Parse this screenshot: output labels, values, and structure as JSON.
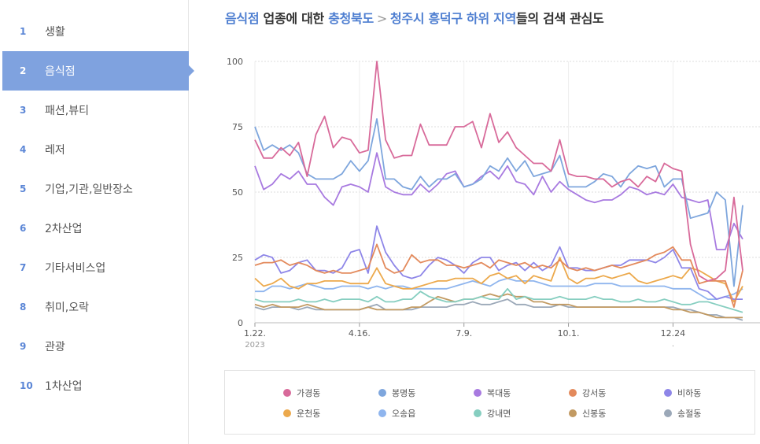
{
  "sidebar": {
    "items": [
      {
        "num": "1",
        "label": "생활"
      },
      {
        "num": "2",
        "label": "음식점",
        "active": true
      },
      {
        "num": "3",
        "label": "패션,뷰티"
      },
      {
        "num": "4",
        "label": "레저"
      },
      {
        "num": "5",
        "label": "기업,기관,일반장소"
      },
      {
        "num": "6",
        "label": "2차산업"
      },
      {
        "num": "7",
        "label": "기타서비스업"
      },
      {
        "num": "8",
        "label": "취미,오락"
      },
      {
        "num": "9",
        "label": "관광"
      },
      {
        "num": "10",
        "label": "1차산업"
      }
    ]
  },
  "title": {
    "category": "음식점",
    "t1": " 업종에 대한 ",
    "region": "충청북도",
    "arrow": ">",
    "subregion": "청주시 흥덕구 하위 지역",
    "t2": "들의 검색 관심도"
  },
  "chart_data": {
    "type": "line",
    "x_tick_labels": [
      "1.22.",
      "4.16.",
      "7.9.",
      "10.1.",
      "12.24"
    ],
    "x_tick_sublabel": "2023",
    "x_tick_sublabel_2": ".",
    "y_ticks": [
      0,
      25,
      50,
      75,
      100
    ],
    "ylim": [
      0,
      100
    ],
    "grid": true,
    "legend_position": "bottom",
    "series": [
      {
        "name": "가경동",
        "color": "#d86a9a",
        "values": [
          70,
          63,
          63,
          67,
          64,
          69,
          56,
          72,
          79,
          67,
          71,
          70,
          65,
          66,
          100,
          70,
          63,
          64,
          64,
          76,
          68,
          68,
          68,
          75,
          75,
          77,
          67,
          80,
          69,
          73,
          67,
          64,
          61,
          61,
          58,
          70,
          57,
          56,
          56,
          55,
          55,
          52,
          54,
          55,
          52,
          56,
          54,
          61,
          59,
          58,
          30,
          18,
          16,
          17,
          20,
          48,
          20
        ]
      },
      {
        "name": "봉명동",
        "color": "#7ea6dd",
        "values": [
          75,
          66,
          68,
          66,
          68,
          65,
          57,
          55,
          55,
          55,
          57,
          62,
          58,
          62,
          78,
          55,
          55,
          52,
          51,
          56,
          52,
          55,
          55,
          57,
          52,
          53,
          55,
          60,
          58,
          63,
          58,
          62,
          56,
          57,
          58,
          64,
          52,
          52,
          52,
          54,
          57,
          56,
          52,
          57,
          60,
          59,
          60,
          52,
          55,
          55,
          40,
          41,
          42,
          50,
          47,
          14,
          45
        ]
      },
      {
        "name": "복대동",
        "color": "#a87ae0",
        "values": [
          60,
          51,
          53,
          57,
          55,
          58,
          53,
          53,
          48,
          45,
          52,
          53,
          52,
          50,
          65,
          52,
          50,
          49,
          49,
          53,
          50,
          53,
          57,
          58,
          52,
          53,
          56,
          58,
          55,
          60,
          54,
          53,
          49,
          56,
          50,
          54,
          51,
          49,
          47,
          46,
          47,
          47,
          49,
          52,
          51,
          49,
          50,
          49,
          53,
          48,
          47,
          46,
          47,
          28,
          28,
          38,
          32
        ]
      },
      {
        "name": "강서동",
        "color": "#e38a5c",
        "values": [
          22,
          23,
          23,
          24,
          22,
          23,
          22,
          20,
          19,
          20,
          19,
          19,
          20,
          21,
          30,
          21,
          19,
          20,
          26,
          23,
          24,
          24,
          22,
          22,
          21,
          22,
          23,
          21,
          24,
          23,
          22,
          23,
          21,
          22,
          21,
          24,
          21,
          20,
          21,
          20,
          21,
          22,
          21,
          22,
          23,
          24,
          26,
          27,
          29,
          24,
          24,
          15,
          16,
          16,
          16,
          6,
          20
        ]
      },
      {
        "name": "비하동",
        "color": "#8e86e8",
        "values": [
          24,
          26,
          25,
          19,
          20,
          23,
          24,
          20,
          20,
          19,
          21,
          27,
          28,
          19,
          37,
          27,
          22,
          18,
          17,
          18,
          22,
          25,
          24,
          22,
          19,
          23,
          25,
          25,
          20,
          22,
          23,
          20,
          23,
          20,
          22,
          29,
          21,
          21,
          20,
          20,
          21,
          22,
          22,
          24,
          24,
          24,
          23,
          25,
          28,
          21,
          21,
          13,
          12,
          9,
          10,
          9,
          9
        ]
      },
      {
        "name": "운천동",
        "color": "#eca94c",
        "values": [
          17,
          14,
          15,
          17,
          14,
          13,
          15,
          15,
          16,
          16,
          16,
          15,
          15,
          15,
          21,
          15,
          14,
          13,
          13,
          14,
          15,
          16,
          16,
          17,
          17,
          17,
          15,
          18,
          19,
          17,
          18,
          15,
          18,
          17,
          16,
          25,
          17,
          15,
          17,
          17,
          18,
          17,
          18,
          19,
          16,
          15,
          16,
          17,
          18,
          17,
          21,
          20,
          18,
          16,
          15,
          8,
          14
        ]
      },
      {
        "name": "오송읍",
        "color": "#8fb5ee",
        "values": [
          12,
          12,
          14,
          14,
          13,
          14,
          15,
          14,
          13,
          13,
          14,
          14,
          14,
          13,
          14,
          13,
          14,
          14,
          13,
          13,
          13,
          13,
          13,
          14,
          15,
          16,
          15,
          14,
          16,
          17,
          16,
          16,
          16,
          15,
          14,
          14,
          14,
          14,
          14,
          15,
          15,
          15,
          14,
          14,
          14,
          14,
          14,
          14,
          13,
          13,
          13,
          11,
          9,
          9,
          10,
          11,
          13
        ]
      },
      {
        "name": "강내면",
        "color": "#86cec0",
        "values": [
          9,
          8,
          8,
          8,
          8,
          9,
          8,
          8,
          9,
          8,
          9,
          9,
          9,
          8,
          10,
          8,
          8,
          9,
          9,
          12,
          10,
          9,
          8,
          8,
          9,
          9,
          10,
          9,
          9,
          13,
          9,
          10,
          9,
          9,
          9,
          10,
          9,
          9,
          9,
          10,
          9,
          9,
          8,
          8,
          9,
          8,
          8,
          9,
          8,
          7,
          7,
          8,
          8,
          7,
          6,
          5,
          4
        ]
      },
      {
        "name": "신봉동",
        "color": "#c29a62",
        "values": [
          7,
          6,
          7,
          6,
          6,
          6,
          7,
          6,
          5,
          5,
          5,
          5,
          5,
          6,
          5,
          5,
          5,
          5,
          6,
          6,
          8,
          10,
          9,
          8,
          9,
          9,
          10,
          11,
          10,
          11,
          10,
          10,
          8,
          8,
          7,
          7,
          7,
          6,
          6,
          6,
          6,
          6,
          6,
          6,
          6,
          6,
          6,
          6,
          5,
          5,
          4,
          4,
          3,
          2,
          2,
          2,
          2
        ]
      },
      {
        "name": "송절동",
        "color": "#9ba8b8",
        "values": [
          6,
          5,
          6,
          6,
          6,
          5,
          6,
          5,
          5,
          5,
          5,
          5,
          5,
          6,
          7,
          5,
          5,
          5,
          5,
          6,
          6,
          6,
          6,
          7,
          7,
          8,
          7,
          7,
          8,
          9,
          7,
          7,
          6,
          6,
          6,
          7,
          6,
          6,
          6,
          6,
          6,
          6,
          6,
          6,
          6,
          6,
          6,
          6,
          6,
          5,
          5,
          4,
          3,
          3,
          2,
          2,
          1
        ]
      }
    ]
  }
}
